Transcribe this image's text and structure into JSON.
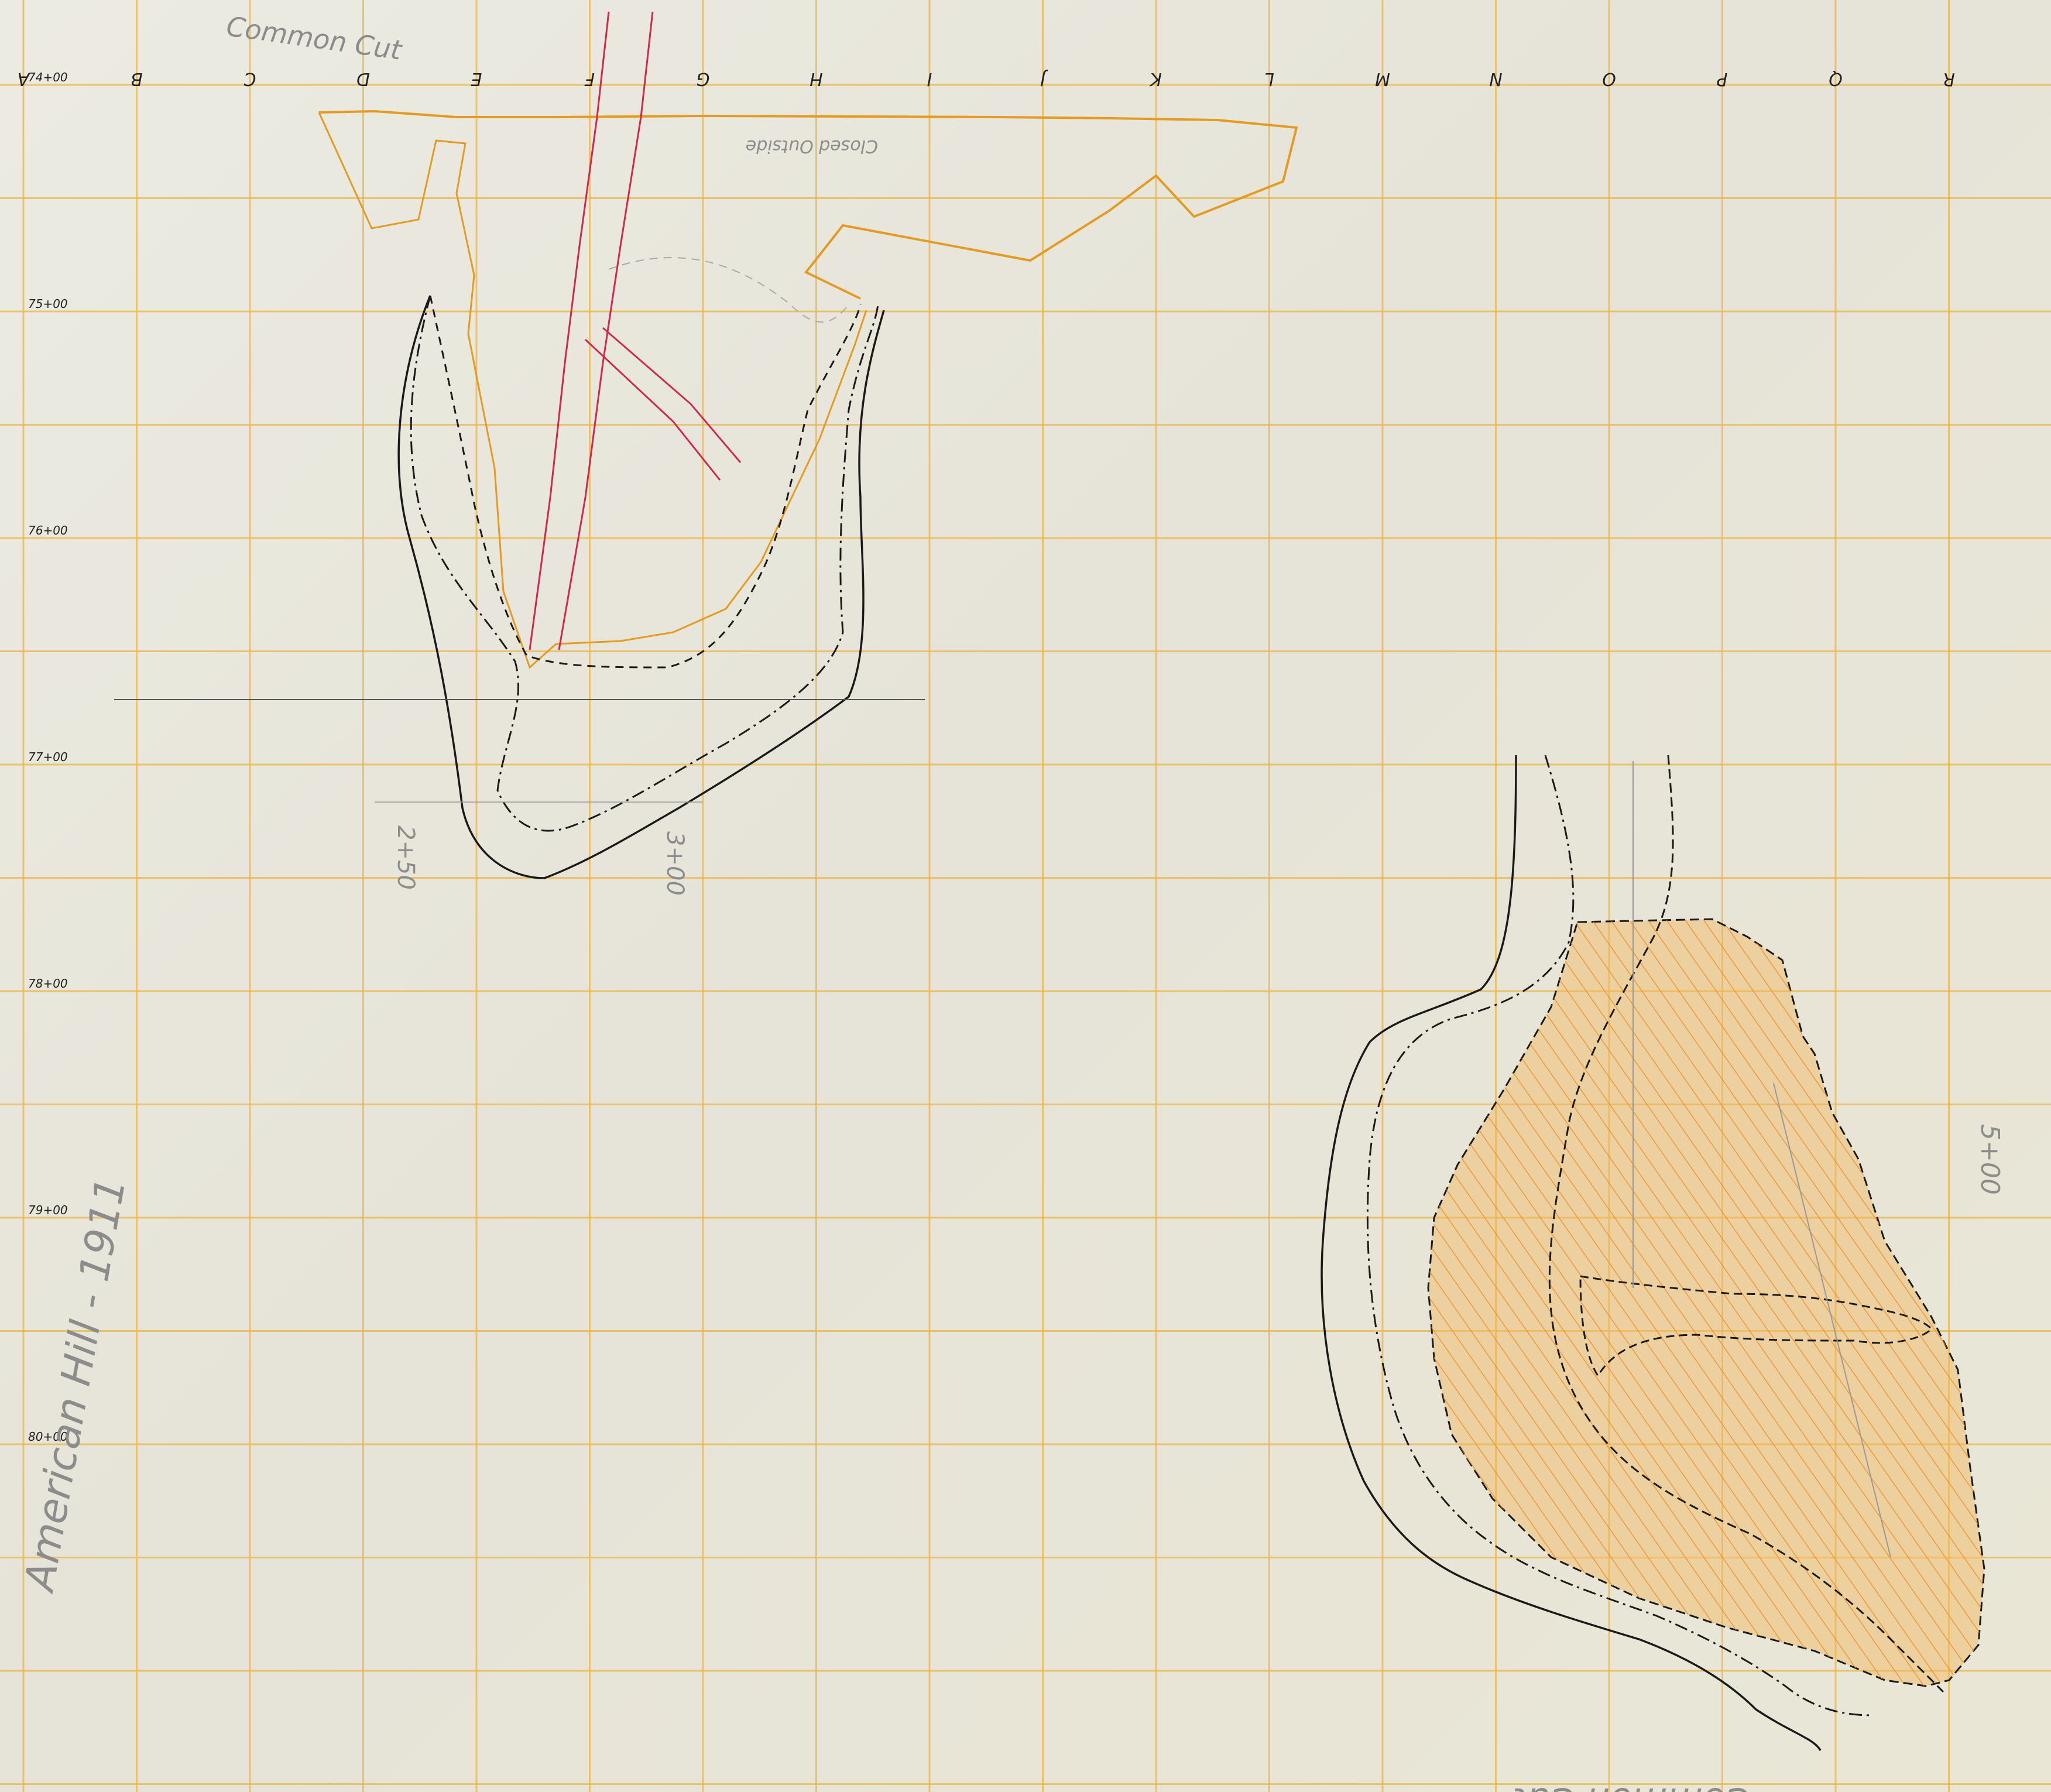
{
  "map": {
    "column_letters": [
      "A",
      "B",
      "C",
      "D",
      "E",
      "F",
      "G",
      "H",
      "I",
      "J",
      "K",
      "L",
      "M",
      "N",
      "O",
      "P",
      "Q",
      "R"
    ],
    "row_stations": [
      "74+00",
      "75+00",
      "76+00",
      "77+00",
      "78+00",
      "79+00",
      "80+00"
    ],
    "side_title": "American Hill - 1911",
    "top_note": "Common Cut",
    "closed_note": "Closed Outside",
    "bottom_note": "Common Cut",
    "station_notes": [
      "2+50",
      "3+00",
      "5+00"
    ],
    "colors": {
      "grid": "#e9b64a",
      "traverse": "#e59a22",
      "hatch": "#ef8a1e",
      "fill": "#f2b65c",
      "red_line": "#cf2a4e",
      "contour": "#1a1a1a"
    }
  }
}
